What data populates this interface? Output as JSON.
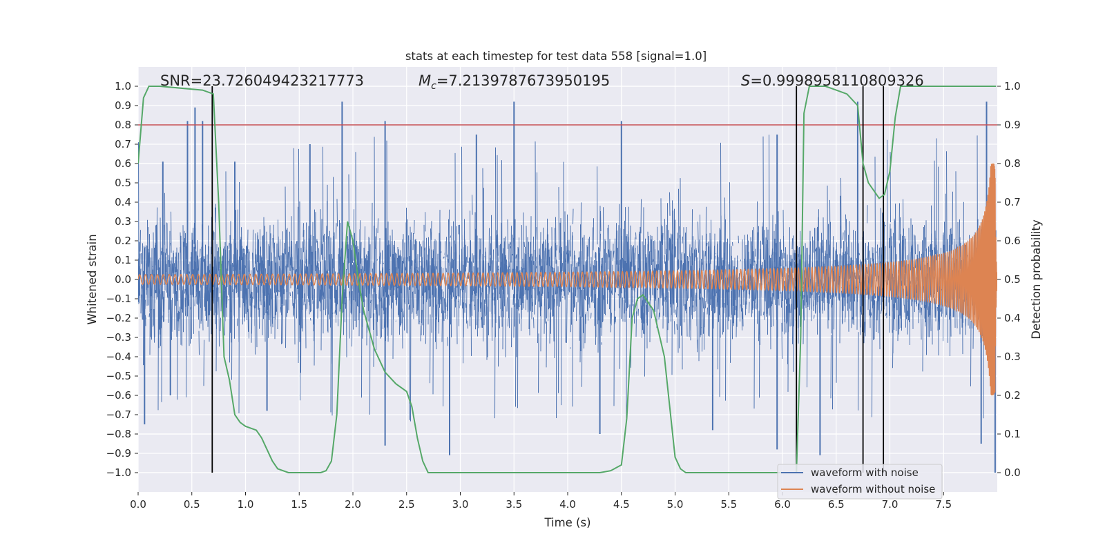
{
  "chart_data": {
    "type": "line",
    "title": "stats at each timestep for test data 558 [signal=1.0]",
    "xlabel": "Time (s)",
    "ylabel": "Whitened strain",
    "ylabel_right": "Detection probability",
    "xlim": [
      0.0,
      8.0
    ],
    "ylim": [
      -1.1,
      1.1
    ],
    "ylim_right": [
      -0.05,
      1.05
    ],
    "x_ticks": [
      "0.0",
      "0.5",
      "1.0",
      "1.5",
      "2.0",
      "2.5",
      "3.0",
      "3.5",
      "4.0",
      "4.5",
      "5.0",
      "5.5",
      "6.0",
      "6.5",
      "7.0",
      "7.5"
    ],
    "y_ticks": [
      "1.0",
      "0.9",
      "0.8",
      "0.7",
      "0.6",
      "0.5",
      "0.4",
      "0.3",
      "0.2",
      "0.1",
      "0.0",
      "−0.1",
      "−0.2",
      "−0.3",
      "−0.4",
      "−0.5",
      "−0.6",
      "−0.7",
      "−0.8",
      "−0.9",
      "−1.0"
    ],
    "y_right_ticks": [
      "1.0",
      "0.9",
      "0.8",
      "0.7",
      "0.6",
      "0.5",
      "0.4",
      "0.3",
      "0.2",
      "0.1",
      "0.0"
    ],
    "grid": true,
    "legend_placement": "lower-right",
    "annotations": {
      "snr": "SNR=23.726049423217773",
      "mc_symbol": "M",
      "mc_sub": "c",
      "mc_value": "=7.2139787673950195",
      "s_symbol": "S",
      "s_value": "=0.9998958110809326"
    },
    "threshold": {
      "value": 0.8,
      "axis": "left",
      "color": "#c44e52"
    },
    "vertical_lines": {
      "x": [
        0.69,
        6.13,
        6.75,
        6.94
      ],
      "y_from": -1.0,
      "y_to": 1.0,
      "color": "#000000"
    },
    "series": [
      {
        "name": "waveform with noise",
        "color": "#4c72b0",
        "axis": "left",
        "envelope": {
          "x_range": [
            0.0,
            7.99
          ],
          "typical_abs": 0.4,
          "max_abs": 0.92
        },
        "spikes": [
          {
            "x": 0.23,
            "y": 0.61
          },
          {
            "x": 0.46,
            "y": 0.82
          },
          {
            "x": 0.53,
            "y": 0.89
          },
          {
            "x": 0.6,
            "y": 0.82
          },
          {
            "x": 0.9,
            "y": 0.61
          },
          {
            "x": 1.6,
            "y": 0.7
          },
          {
            "x": 1.9,
            "y": 0.92
          },
          {
            "x": 2.3,
            "y": 0.82
          },
          {
            "x": 3.15,
            "y": 0.75
          },
          {
            "x": 3.5,
            "y": 0.92
          },
          {
            "x": 4.5,
            "y": 0.82
          },
          {
            "x": 5.95,
            "y": 0.75
          },
          {
            "x": 6.7,
            "y": 0.92
          },
          {
            "x": 7.9,
            "y": 0.92
          },
          {
            "x": 0.06,
            "y": -0.75
          },
          {
            "x": 0.3,
            "y": -0.6
          },
          {
            "x": 1.2,
            "y": -0.68
          },
          {
            "x": 2.3,
            "y": -0.86
          },
          {
            "x": 2.9,
            "y": -0.91
          },
          {
            "x": 4.3,
            "y": -0.8
          },
          {
            "x": 5.35,
            "y": -0.78
          },
          {
            "x": 5.95,
            "y": -0.88
          },
          {
            "x": 6.35,
            "y": -0.91
          },
          {
            "x": 7.85,
            "y": -0.85
          },
          {
            "x": 7.98,
            "y": -1.0
          }
        ]
      },
      {
        "name": "waveform without noise",
        "color": "#dd8452",
        "axis": "left",
        "chirp": {
          "amplitude_start": 0.025,
          "amplitude_peak": 0.6,
          "freq_start_hz": 18,
          "merger_time": 7.98
        }
      },
      {
        "name": "Detection probability",
        "color": "#55a868",
        "axis": "right",
        "x": [
          0.0,
          0.05,
          0.1,
          0.2,
          0.6,
          0.7,
          0.75,
          0.8,
          0.85,
          0.9,
          0.95,
          1.0,
          1.1,
          1.15,
          1.2,
          1.25,
          1.3,
          1.4,
          1.5,
          1.6,
          1.7,
          1.75,
          1.8,
          1.85,
          1.9,
          1.95,
          2.0,
          2.05,
          2.1,
          2.2,
          2.3,
          2.4,
          2.5,
          2.55,
          2.6,
          2.65,
          2.7,
          2.8,
          3.0,
          3.5,
          4.0,
          4.3,
          4.4,
          4.5,
          4.55,
          4.6,
          4.65,
          4.7,
          4.8,
          4.9,
          5.0,
          5.05,
          5.1,
          5.5,
          6.0,
          6.1,
          6.13,
          6.17,
          6.2,
          6.25,
          6.3,
          6.4,
          6.5,
          6.6,
          6.7,
          6.75,
          6.8,
          6.85,
          6.9,
          6.95,
          7.0,
          7.05,
          7.1,
          7.5,
          7.99
        ],
        "y": [
          0.8,
          0.97,
          1.0,
          1.0,
          0.99,
          0.98,
          0.7,
          0.3,
          0.24,
          0.15,
          0.13,
          0.12,
          0.11,
          0.09,
          0.06,
          0.03,
          0.01,
          0.0,
          0.0,
          0.0,
          0.0,
          0.005,
          0.03,
          0.15,
          0.45,
          0.65,
          0.6,
          0.5,
          0.42,
          0.32,
          0.26,
          0.23,
          0.21,
          0.17,
          0.09,
          0.03,
          0.0,
          0.0,
          0.0,
          0.0,
          0.0,
          0.0,
          0.005,
          0.02,
          0.14,
          0.4,
          0.45,
          0.46,
          0.42,
          0.3,
          0.04,
          0.01,
          0.0,
          0.0,
          0.0,
          0.0,
          0.0,
          0.35,
          0.93,
          1.0,
          1.0,
          1.0,
          0.99,
          0.98,
          0.95,
          0.8,
          0.75,
          0.73,
          0.71,
          0.72,
          0.78,
          0.92,
          1.0,
          1.0,
          1.0
        ]
      }
    ]
  }
}
